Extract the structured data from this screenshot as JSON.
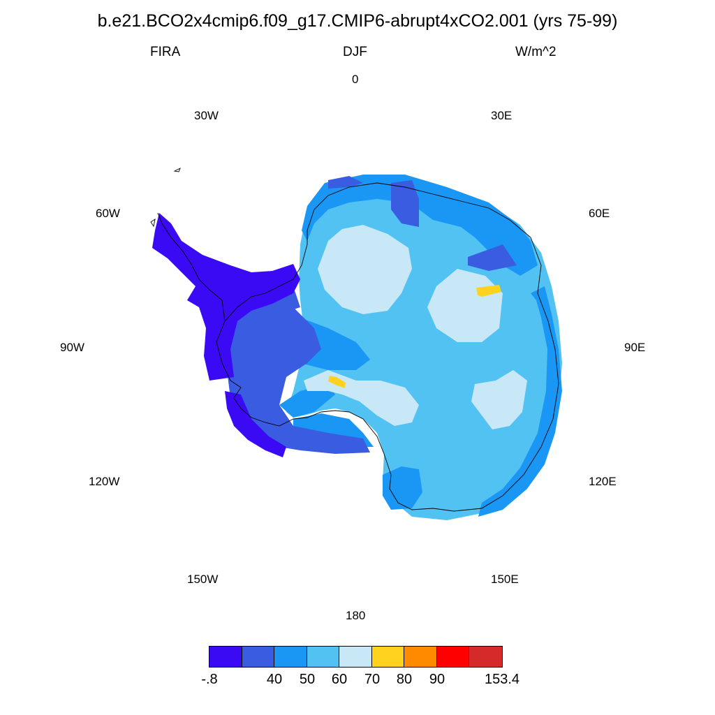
{
  "title": "b.e21.BCO2x4cmip6.f09_g17.CMIP6-abrupt4xCO2.001 (yrs 75-99)",
  "variable": "FIRA",
  "season": "DJF",
  "units": "W/m^2",
  "longitude_labels": [
    "0",
    "30E",
    "60E",
    "90E",
    "120E",
    "150E",
    "180",
    "150W",
    "120W",
    "90W",
    "60W",
    "30W"
  ],
  "colorbar": {
    "colors": [
      "#3b0af5",
      "#3a5ce0",
      "#1a96f5",
      "#52c2f3",
      "#c9e8f7",
      "#ffd21f",
      "#ff8a00",
      "#ff0000",
      "#d42a2a"
    ],
    "labels": [
      "-.8",
      "40",
      "50",
      "60",
      "70",
      "80",
      "90",
      "153.4"
    ]
  },
  "map_colors": {
    "c1": "#3b0af5",
    "c2": "#3a5ce0",
    "c3": "#1a96f5",
    "c4": "#52c2f3",
    "c5": "#c9e8f7",
    "c6": "#ffd21f"
  }
}
